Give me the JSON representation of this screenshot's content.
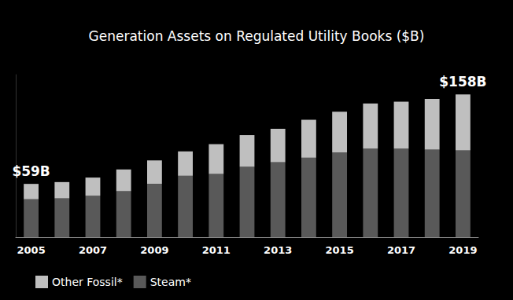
{
  "chart_data": {
    "type": "bar",
    "title": "Generation Assets on Regulated Utility Books ($B)",
    "categories": [
      "2005",
      null,
      "2007",
      null,
      "2009",
      null,
      "2011",
      null,
      "2013",
      null,
      "2015",
      null,
      "2017",
      null,
      "2019"
    ],
    "series": [
      {
        "name": "Other Fossil*",
        "color": "#bfbfbf",
        "values": [
          17,
          18,
          20,
          24,
          26,
          27,
          33,
          35,
          37,
          42,
          45,
          50,
          52,
          56,
          62
        ]
      },
      {
        "name": "Steam*",
        "color": "#595959",
        "values": [
          42,
          43,
          46,
          51,
          59,
          68,
          70,
          78,
          83,
          88,
          94,
          98,
          98,
          97,
          96
        ]
      }
    ],
    "annotations": [
      {
        "text": "$59B",
        "category": "2005",
        "value": 59
      },
      {
        "text": "$158B",
        "category": "2019",
        "value": 158
      }
    ],
    "ylim": [
      0,
      180
    ],
    "stacked": true,
    "grid": false,
    "legend": "bottom-left",
    "tick_labels": "x",
    "data_labels": false
  }
}
